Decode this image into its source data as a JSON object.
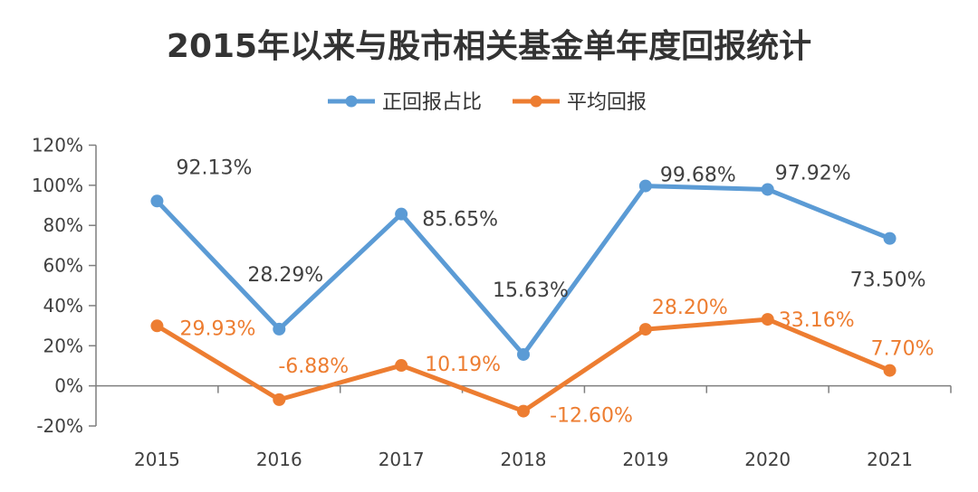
{
  "chart_data": {
    "type": "line",
    "title": "2015年以来与股市相关基金单年度回报统计",
    "categories": [
      "2015",
      "2016",
      "2017",
      "2018",
      "2019",
      "2020",
      "2021"
    ],
    "ylim": [
      -20,
      120
    ],
    "y_ticks": [
      -20,
      0,
      20,
      40,
      60,
      80,
      100,
      120
    ],
    "y_tick_labels": [
      "-20%",
      "0%",
      "20%",
      "40%",
      "60%",
      "80%",
      "100%",
      "120%"
    ],
    "grid": false,
    "legend_position": "top",
    "series": [
      {
        "name": "正回报占比",
        "color": "#5b9bd5",
        "values": [
          92.13,
          28.29,
          85.65,
          15.63,
          99.68,
          97.92,
          73.5
        ],
        "labels": [
          "92.13%",
          "28.29%",
          "85.65%",
          "15.63%",
          "99.68%",
          "97.92%",
          "73.50%"
        ],
        "label_color": "#404040"
      },
      {
        "name": "平均回报",
        "color": "#ed7d31",
        "values": [
          29.93,
          -6.88,
          10.19,
          -12.6,
          28.2,
          33.16,
          7.7
        ],
        "labels": [
          "29.93%",
          "-6.88%",
          "10.19%",
          "-12.60%",
          "28.20%",
          "33.16%",
          "7.70%"
        ],
        "label_color": "#ed7d31"
      }
    ]
  }
}
